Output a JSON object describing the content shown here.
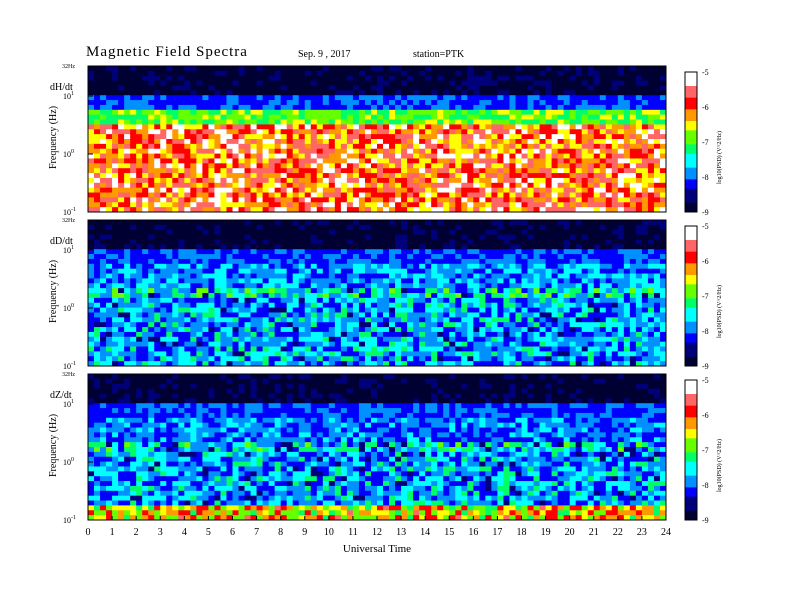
{
  "header": {
    "title": "Magnetic  Field  Spectra",
    "date": "Sep. 9  , 2017",
    "station": "station=PTK"
  },
  "chart_data": {
    "type": "heatmap",
    "xlabel": "Universal Time",
    "xlim": [
      0,
      24
    ],
    "x_ticks": [
      "0",
      "1",
      "2",
      "3",
      "4",
      "5",
      "6",
      "7",
      "8",
      "9",
      "10",
      "11",
      "12",
      "13",
      "14",
      "15",
      "16",
      "17",
      "18",
      "19",
      "20",
      "21",
      "22",
      "23",
      "24"
    ],
    "panels": [
      {
        "component": "dH/dt",
        "ylabel": "Frequency (Hz)",
        "ylim_label": "32Hz",
        "y_ticks": [
          "10^1",
          "10^0",
          "10^-1"
        ],
        "colorbar_label": "log10(PSD) (V^2/Hz)",
        "colorbar_ticks": [
          "-5",
          "-6",
          "-7",
          "-8",
          "-9"
        ],
        "background_level": -6.9
      },
      {
        "component": "dD/dt",
        "ylabel": "Frequency (Hz)",
        "ylim_label": "32Hz",
        "y_ticks": [
          "10^1",
          "10^0",
          "10^-1"
        ],
        "colorbar_label": "log10(PSD) (V^2/Hz)",
        "colorbar_ticks": [
          "-5",
          "-6",
          "-7",
          "-8",
          "-9"
        ],
        "background_level": -7.8
      },
      {
        "component": "dZ/dt",
        "ylabel": "Frequency (Hz)",
        "ylim_label": "32Hz",
        "y_ticks": [
          "10^1",
          "10^0",
          "10^-1"
        ],
        "colorbar_label": "log10(PSD) (V^2/Hz)",
        "colorbar_ticks": [
          "-5",
          "-6",
          "-7",
          "-8",
          "-9"
        ],
        "background_level": -7.9
      }
    ],
    "colormap": [
      "#000033",
      "#00007a",
      "#0000ff",
      "#0090ff",
      "#00ffff",
      "#00ff66",
      "#66ff00",
      "#ffff00",
      "#ff9900",
      "#ff0000",
      "#ff6666",
      "#ffffff"
    ],
    "clim": [
      -9,
      -5
    ]
  }
}
